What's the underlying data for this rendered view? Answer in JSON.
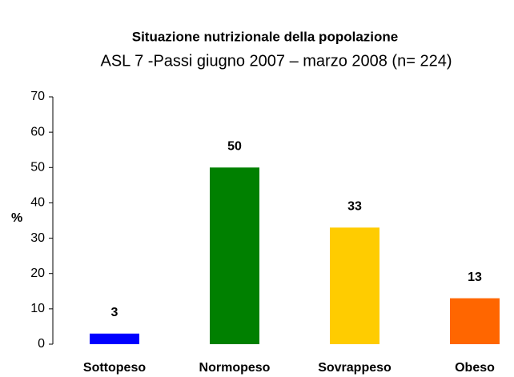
{
  "chart_data": {
    "type": "bar",
    "title": "Situazione nutrizionale della popolazione",
    "subtitle": "ASL 7 -Passi giugno 2007 – marzo 2008 (n= 224)",
    "y_label": "%",
    "categories": [
      "Sottopeso",
      "Normopeso",
      "Sovrappeso",
      "Obeso"
    ],
    "values": [
      3,
      50,
      33,
      13
    ],
    "colors": [
      "#0000ff",
      "#008000",
      "#ffcc00",
      "#ff6600"
    ],
    "ylim": [
      0,
      70
    ],
    "yticks": [
      0,
      10,
      20,
      30,
      40,
      50,
      60,
      70
    ],
    "grid": false
  }
}
